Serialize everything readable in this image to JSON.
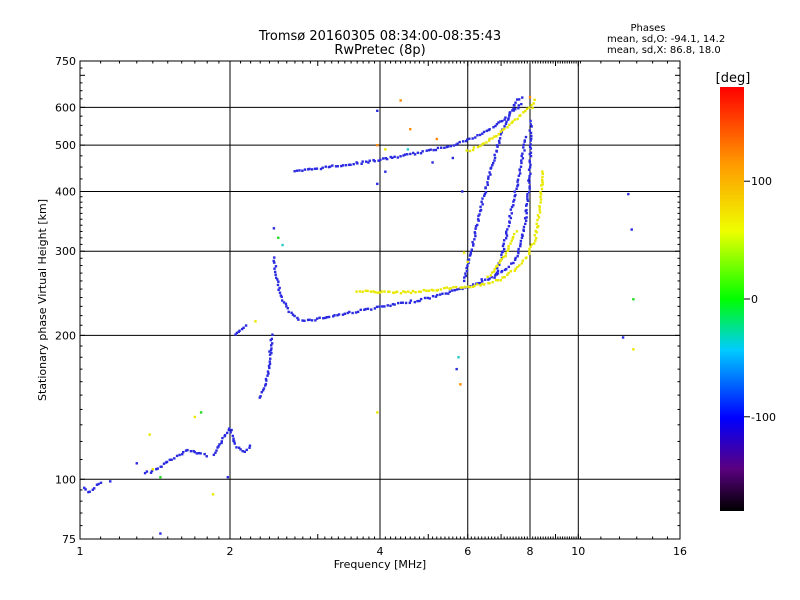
{
  "chart_data": {
    "type": "scatter",
    "title": "Tromsø 20160305 08:34:00-08:35:43",
    "subtitle": "RwPretec (8p)",
    "xlabel": "Frequency [MHz]",
    "ylabel": "Stationary phase Virtual Height [km]",
    "x_scale": "log",
    "y_scale": "log",
    "xlim": [
      1,
      16
    ],
    "ylim": [
      75,
      750
    ],
    "x_ticks": [
      1,
      2,
      4,
      6,
      8,
      10,
      16
    ],
    "y_ticks": [
      75,
      100,
      200,
      300,
      400,
      500,
      600,
      750
    ],
    "grid": true,
    "stats": {
      "heading": "Phases",
      "o_line": "mean, sd,O: -94.1, 14.2",
      "x_line": "mean, sd,X: 86.8, 18.0"
    },
    "colorbar": {
      "label": "[deg]",
      "ticks": [
        "100",
        "0",
        "-100"
      ],
      "range": [
        -180,
        180
      ],
      "tick_values": [
        100,
        0,
        -100
      ]
    },
    "series": [
      {
        "mode": "O",
        "color": "#2a2ae0",
        "traces": [
          [
            [
              1.02,
              96
            ],
            [
              1.04,
              94
            ],
            [
              1.06,
              95
            ],
            [
              1.08,
              97
            ],
            [
              1.1,
              98
            ]
          ],
          [
            [
              1.35,
              103
            ],
            [
              1.4,
              104
            ],
            [
              1.45,
              106
            ],
            [
              1.5,
              109
            ],
            [
              1.55,
              111
            ],
            [
              1.6,
              113
            ],
            [
              1.65,
              115
            ],
            [
              1.7,
              114
            ],
            [
              1.75,
              113
            ],
            [
              1.8,
              112
            ]
          ],
          [
            [
              1.85,
              113
            ],
            [
              1.9,
              117
            ],
            [
              1.95,
              123
            ],
            [
              2.0,
              128
            ],
            [
              2.03,
              122
            ],
            [
              2.06,
              117
            ],
            [
              2.1,
              115
            ],
            [
              2.15,
              114
            ],
            [
              2.2,
              117
            ]
          ],
          [
            [
              2.05,
              200
            ],
            [
              2.1,
              205
            ],
            [
              2.15,
              210
            ]
          ],
          [
            [
              2.3,
              148
            ],
            [
              2.35,
              155
            ],
            [
              2.4,
              175
            ],
            [
              2.43,
              200
            ]
          ],
          [
            [
              2.45,
              290
            ],
            [
              2.48,
              265
            ],
            [
              2.52,
              245
            ],
            [
              2.58,
              232
            ],
            [
              2.65,
              222
            ],
            [
              2.75,
              216
            ],
            [
              2.9,
              215
            ],
            [
              3.1,
              218
            ],
            [
              3.4,
              222
            ],
            [
              3.8,
              227
            ],
            [
              4.3,
              232
            ],
            [
              4.8,
              237
            ],
            [
              5.3,
              243
            ],
            [
              5.8,
              250
            ],
            [
              6.3,
              257
            ],
            [
              6.8,
              266
            ],
            [
              7.2,
              276
            ],
            [
              7.5,
              290
            ],
            [
              7.7,
              315
            ],
            [
              7.85,
              350
            ],
            [
              7.95,
              400
            ],
            [
              8.0,
              460
            ],
            [
              8.02,
              510
            ],
            [
              8.03,
              560
            ]
          ],
          [
            [
              2.7,
              440
            ],
            [
              2.8,
              442
            ],
            [
              3.0,
              447
            ],
            [
              3.3,
              453
            ],
            [
              3.7,
              460
            ],
            [
              4.1,
              468
            ],
            [
              4.5,
              476
            ],
            [
              5.0,
              486
            ],
            [
              5.5,
              498
            ],
            [
              6.0,
              512
            ],
            [
              6.4,
              528
            ],
            [
              6.8,
              548
            ],
            [
              7.1,
              568
            ],
            [
              7.4,
              588
            ],
            [
              7.7,
              610
            ]
          ],
          [
            [
              5.9,
              260
            ],
            [
              6.1,
              300
            ],
            [
              6.3,
              350
            ],
            [
              6.5,
              400
            ],
            [
              6.7,
              450
            ],
            [
              6.9,
              500
            ],
            [
              7.1,
              545
            ],
            [
              7.3,
              585
            ],
            [
              7.5,
              615
            ],
            [
              7.7,
              630
            ]
          ],
          [
            [
              6.8,
              265
            ],
            [
              7.0,
              290
            ],
            [
              7.2,
              330
            ],
            [
              7.4,
              380
            ],
            [
              7.6,
              430
            ],
            [
              7.75,
              480
            ],
            [
              7.85,
              520
            ]
          ]
        ],
        "scatter": [
          [
            1.15,
            99
          ],
          [
            1.3,
            108
          ],
          [
            1.45,
            77
          ],
          [
            1.55,
            74
          ],
          [
            1.98,
            101
          ],
          [
            2.4,
            185
          ],
          [
            2.45,
            335
          ],
          [
            3.95,
            590
          ],
          [
            3.95,
            415
          ],
          [
            4.1,
            440
          ],
          [
            5.7,
            170
          ],
          [
            5.85,
            400
          ],
          [
            6.4,
            262
          ],
          [
            5.1,
            460
          ],
          [
            5.6,
            470
          ],
          [
            12.6,
            395
          ],
          [
            12.8,
            333
          ],
          [
            12.3,
            198
          ]
        ]
      },
      {
        "mode": "X",
        "color": "#e8e800",
        "traces": [
          [
            [
              3.6,
              248
            ],
            [
              4.0,
              246
            ],
            [
              4.5,
              246
            ],
            [
              5.0,
              248
            ],
            [
              5.5,
              251
            ],
            [
              6.0,
              253
            ],
            [
              6.5,
              256
            ],
            [
              7.0,
              262
            ],
            [
              7.5,
              275
            ],
            [
              7.9,
              292
            ],
            [
              8.2,
              320
            ],
            [
              8.35,
              360
            ],
            [
              8.45,
              410
            ],
            [
              8.5,
              440
            ]
          ],
          [
            [
              6.0,
              485
            ],
            [
              6.4,
              500
            ],
            [
              6.8,
              520
            ],
            [
              7.2,
              545
            ],
            [
              7.6,
              575
            ],
            [
              8.0,
              600
            ],
            [
              8.2,
              620
            ]
          ],
          [
            [
              6.6,
              265
            ],
            [
              6.9,
              280
            ],
            [
              7.2,
              300
            ],
            [
              7.5,
              330
            ]
          ]
        ],
        "scatter": [
          [
            1.4,
            105
          ],
          [
            1.38,
            124
          ],
          [
            1.7,
            135
          ],
          [
            1.85,
            93
          ],
          [
            2.25,
            214
          ],
          [
            3.95,
            138
          ],
          [
            4.1,
            490
          ],
          [
            5.9,
            298
          ],
          [
            6.0,
            285
          ],
          [
            12.9,
            187
          ],
          [
            8.1,
            598
          ]
        ]
      },
      {
        "mode": "other",
        "color": "#ff8800",
        "traces": [],
        "scatter": [
          [
            4.4,
            620
          ],
          [
            4.6,
            540
          ],
          [
            3.95,
            500
          ],
          [
            5.2,
            515
          ],
          [
            5.8,
            158
          ],
          [
            8.0,
            630
          ]
        ]
      },
      {
        "mode": "other",
        "color": "#22dd22",
        "traces": [],
        "scatter": [
          [
            1.75,
            138
          ],
          [
            2.5,
            320
          ],
          [
            1.45,
            101
          ],
          [
            12.9,
            238
          ]
        ]
      },
      {
        "mode": "other",
        "color": "#22cccc",
        "traces": [],
        "scatter": [
          [
            4.55,
            490
          ],
          [
            5.75,
            180
          ],
          [
            2.55,
            309
          ]
        ]
      }
    ]
  }
}
